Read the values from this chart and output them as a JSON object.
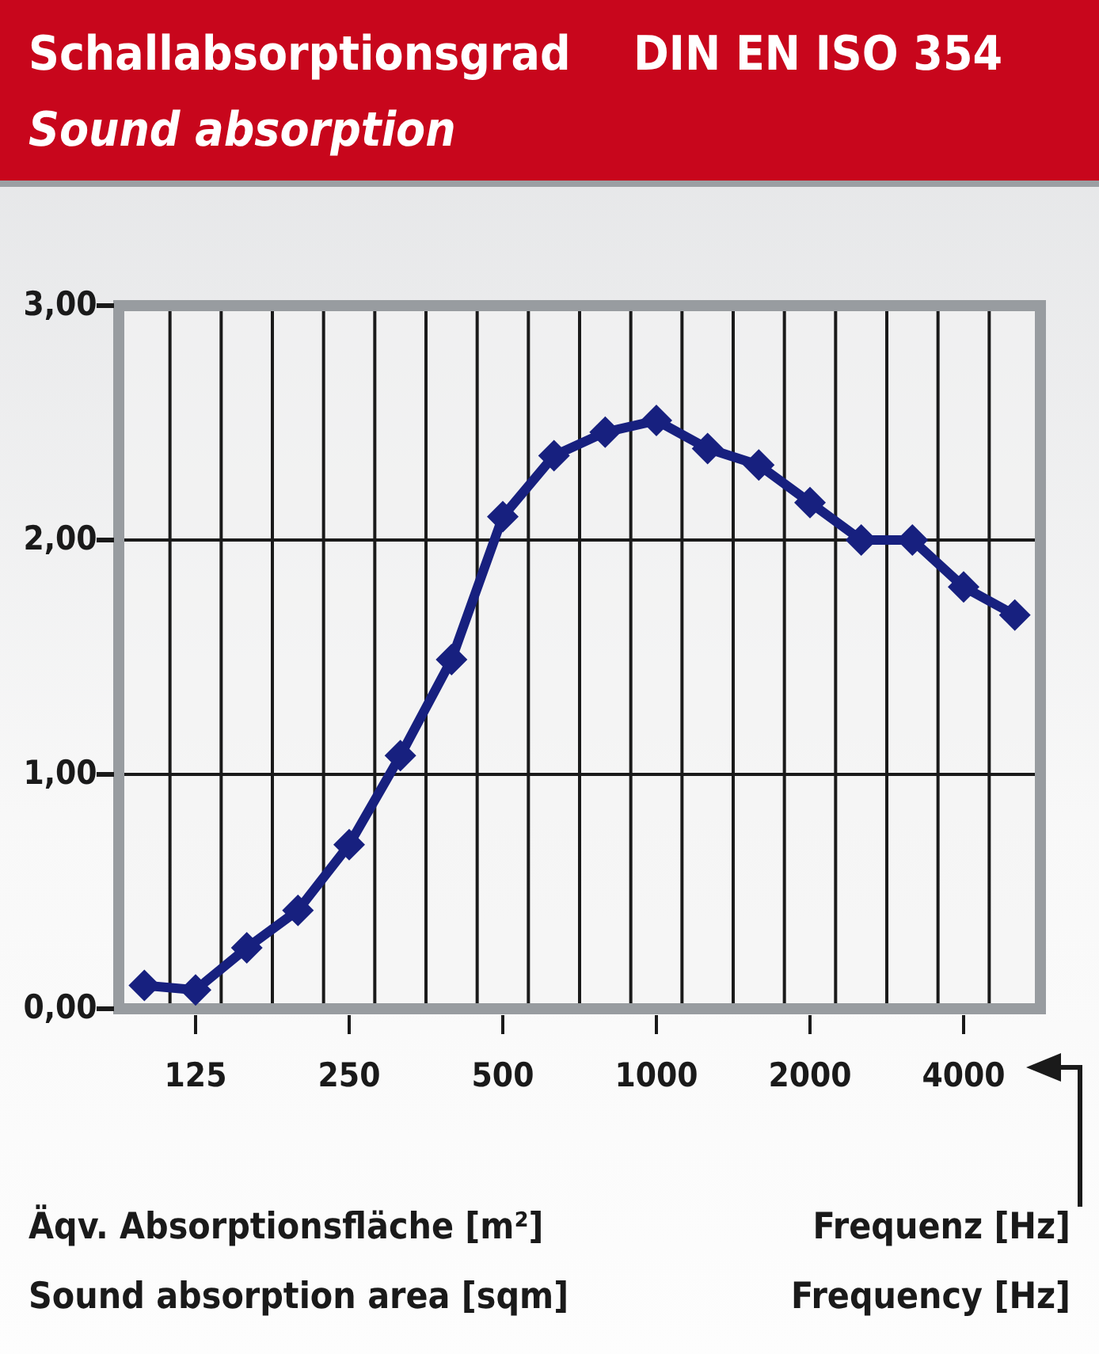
{
  "chart_data": {
    "type": "line",
    "title": "Schallabsorptionsgrad",
    "subtitle": "Sound absorption",
    "annotations": [
      "DIN EN ISO 354"
    ],
    "xlabel": "Frequenz [Hz]\nFrequency [Hz]",
    "ylabel": "Äqv. Absorptionsfläche [m²]\nSound absorption area [sqm]",
    "categories": [
      null,
      "125",
      null,
      null,
      "250",
      null,
      null,
      "500",
      null,
      null,
      "1000",
      null,
      null,
      "2000",
      null,
      null,
      "4000",
      null
    ],
    "series": [
      {
        "color": "#17207f",
        "values": [
          0.1,
          0.08,
          0.26,
          0.42,
          0.7,
          1.08,
          1.49,
          2.1,
          2.36,
          2.46,
          2.51,
          2.39,
          2.32,
          2.16,
          2.0,
          2.0,
          1.8,
          1.68
        ]
      }
    ],
    "ylim": [
      0,
      3
    ],
    "yticks": [
      {
        "value": 0,
        "label": "0,00"
      },
      {
        "value": 1,
        "label": "1,00"
      },
      {
        "value": 2,
        "label": "2,00"
      },
      {
        "value": 3,
        "label": "3,00"
      }
    ],
    "grid": true,
    "marker": "diamond",
    "line_style": "solid"
  }
}
